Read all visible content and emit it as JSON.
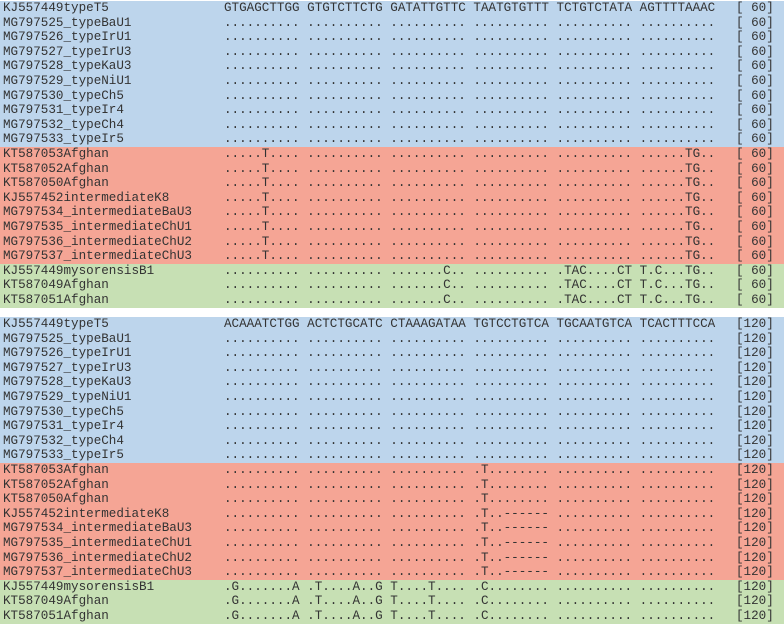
{
  "blocks": [
    {
      "rows": [
        {
          "name": "KJ557449typeT5",
          "sequence": "GTGAGCTTGG GTGTCTTCTG GATATTGTTC TAATGTGTTT TCTGTCTATA AGTTTTAAAC",
          "position": "[ 60]"
        },
        {
          "name": "MG797525_typeBaU1",
          "sequence": ".......... .......... .......... .......... .......... ..........",
          "position": "[ 60]"
        },
        {
          "name": "MG797526_typeIrU1",
          "sequence": ".......... .......... .......... .......... .......... ..........",
          "position": "[ 60]"
        },
        {
          "name": "MG797527_typeIrU3",
          "sequence": ".......... .......... .......... .......... .......... ..........",
          "position": "[ 60]"
        },
        {
          "name": "MG797528_typeKaU3",
          "sequence": ".......... .......... .......... .......... .......... ..........",
          "position": "[ 60]"
        },
        {
          "name": "MG797529_typeNiU1",
          "sequence": ".......... .......... .......... .......... .......... ..........",
          "position": "[ 60]"
        },
        {
          "name": "MG797530_typeCh5",
          "sequence": ".......... .......... .......... .......... .......... ..........",
          "position": "[ 60]"
        },
        {
          "name": "MG797531_typeIr4",
          "sequence": ".......... .......... .......... .......... .......... ..........",
          "position": "[ 60]"
        },
        {
          "name": "MG797532_typeCh4",
          "sequence": ".......... .......... .......... .......... .......... ..........",
          "position": "[ 60]"
        },
        {
          "name": "MG797533_typeIr5",
          "sequence": ".......... .......... .......... .......... .......... ..........",
          "position": "[ 60]"
        },
        {
          "name": "KT587053Afghan",
          "sequence": ".....T.... .......... .......... .......... .......... ......TG..",
          "position": "[ 60]"
        },
        {
          "name": "KT587052Afghan",
          "sequence": ".....T.... .......... .......... .......... .......... ......TG..",
          "position": "[ 60]"
        },
        {
          "name": "KT587050Afghan",
          "sequence": ".....T.... .......... .......... .......... .......... ......TG..",
          "position": "[ 60]"
        },
        {
          "name": "KJ557452intermediateK8",
          "sequence": ".....T.... .......... .......... .......... .......... ......TG..",
          "position": "[ 60]"
        },
        {
          "name": "MG797534_intermediateBaU3",
          "sequence": ".....T.... .......... .......... .......... .......... ......TG..",
          "position": "[ 60]"
        },
        {
          "name": "MG797535_intermediateChU1",
          "sequence": ".....T.... .......... .......... .......... .......... ......TG..",
          "position": "[ 60]"
        },
        {
          "name": "MG797536_intermediateChU2",
          "sequence": ".....T.... .......... .......... .......... .......... ......TG..",
          "position": "[ 60]"
        },
        {
          "name": "MG797537_intermediateChU3",
          "sequence": ".....T.... .......... .......... .......... .......... ......TG..",
          "position": "[ 60]"
        },
        {
          "name": "KJ557449mysorensisB1",
          "sequence": ".......... .......... .......C.. .......... .TAC....CT T.C...TG..",
          "position": "[ 60]"
        },
        {
          "name": "KT587049Afghan",
          "sequence": ".......... .......... .......C.. .......... .TAC....CT T.C...TG..",
          "position": "[ 60]"
        },
        {
          "name": "KT587051Afghan",
          "sequence": ".......... .......... .......C.. .......... .TAC....CT T.C...TG..",
          "position": "[ 60]"
        }
      ]
    },
    {
      "rows": [
        {
          "name": "KJ557449typeT5",
          "sequence": "ACAAATCTGG ACTCTGCATC CTAAAGATAA TGTCCTGTCA TGCAATGTCA TCACTTTCCA",
          "position": "[120]"
        },
        {
          "name": "MG797525_typeBaU1",
          "sequence": ".......... .......... .......... .......... .......... ..........",
          "position": "[120]"
        },
        {
          "name": "MG797526_typeIrU1",
          "sequence": ".......... .......... .......... .......... .......... ..........",
          "position": "[120]"
        },
        {
          "name": "MG797527_typeIrU3",
          "sequence": ".......... .......... .......... .......... .......... ..........",
          "position": "[120]"
        },
        {
          "name": "MG797528_typeKaU3",
          "sequence": ".......... .......... .......... .......... .......... ..........",
          "position": "[120]"
        },
        {
          "name": "MG797529_typeNiU1",
          "sequence": ".......... .......... .......... .......... .......... ..........",
          "position": "[120]"
        },
        {
          "name": "MG797530_typeCh5",
          "sequence": ".......... .......... .......... .......... .......... ..........",
          "position": "[120]"
        },
        {
          "name": "MG797531_typeIr4",
          "sequence": ".......... .......... .......... .......... .......... ..........",
          "position": "[120]"
        },
        {
          "name": "MG797532_typeCh4",
          "sequence": ".......... .......... .......... .......... .......... ..........",
          "position": "[120]"
        },
        {
          "name": "MG797533_typeIr5",
          "sequence": ".......... .......... .......... .......... .......... ..........",
          "position": "[120]"
        },
        {
          "name": "KT587053Afghan",
          "sequence": ".......... .......... .......... .T........ .......... ..........",
          "position": "[120]"
        },
        {
          "name": "KT587052Afghan",
          "sequence": ".......... .......... .......... .T........ .......... ..........",
          "position": "[120]"
        },
        {
          "name": "KT587050Afghan",
          "sequence": ".......... .......... .......... .T........ .......... ..........",
          "position": "[120]"
        },
        {
          "name": "KJ557452intermediateK8",
          "sequence": ".......... .......... .......... .T..------ .......... ..........",
          "position": "[120]"
        },
        {
          "name": "MG797534_intermediateBaU3",
          "sequence": ".......... .......... .......... .T..------ .......... ..........",
          "position": "[120]"
        },
        {
          "name": "MG797535_intermediateChU1",
          "sequence": ".......... .......... .......... .T..------ .......... ..........",
          "position": "[120]"
        },
        {
          "name": "MG797536_intermediateChU2",
          "sequence": ".......... .......... .......... .T..------ .......... ..........",
          "position": "[120]"
        },
        {
          "name": "MG797537_intermediateChU3",
          "sequence": ".......... .......... .......... .T..------ .......... ..........",
          "position": "[120]"
        },
        {
          "name": "KJ557449mysorensisB1",
          "sequence": ".G.......A .T....A..G T....T.... .C........ .......... ..........",
          "position": "[120]"
        },
        {
          "name": "KT587049Afghan",
          "sequence": ".G.......A .T....A..G T....T.... .C........ .......... ..........",
          "position": "[120]"
        },
        {
          "name": "KT587051Afghan",
          "sequence": ".G.......A .T....A..G T....T.... .C........ .......... ..........",
          "position": "[120]"
        }
      ]
    }
  ]
}
